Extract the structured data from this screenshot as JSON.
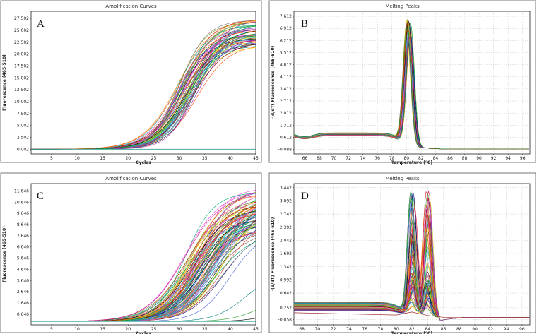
{
  "chart_data": [
    {
      "id": "A",
      "type": "line",
      "title": "Amplification Curves",
      "panel_letter": "A",
      "xlabel": "Cycles",
      "ylabel": "Fluorescence (465-510)",
      "xlim": [
        1,
        45
      ],
      "ylim": [
        -1000,
        29000
      ],
      "xticks": [
        5,
        10,
        15,
        20,
        25,
        30,
        35,
        40,
        45
      ],
      "yticks": [
        "0.002",
        "2.502",
        "5.002",
        "7.502",
        "10.002",
        "12.502",
        "15.002",
        "17.502",
        "20.002",
        "22.502",
        "25.002",
        "27.502"
      ],
      "ytick_values": [
        0.002,
        2502,
        5002,
        7502,
        10002,
        12502,
        15002,
        17502,
        20002,
        22502,
        25002,
        27502
      ],
      "grid": false,
      "curve_model": {
        "kind": "sigmoid",
        "count": 60,
        "midpoint_range": [
          29.5,
          33.5
        ],
        "plateau_range": [
          21500,
          27500
        ],
        "slope_range": [
          2.6,
          3.4
        ],
        "baseline": 0
      }
    },
    {
      "id": "B",
      "type": "line",
      "title": "Melting Peaks",
      "panel_letter": "B",
      "xlabel": "Temperature (°C)",
      "ylabel": "-(d/dT) Fluorescence (465-510)",
      "xlim": [
        64.5,
        97
      ],
      "ylim": [
        -0.35,
        7.9
      ],
      "xticks": [
        66,
        68,
        70,
        72,
        74,
        76,
        78,
        80,
        82,
        84,
        86,
        88,
        90,
        92,
        94,
        96
      ],
      "yticks": [
        "-0.088",
        "0.612",
        "1.312",
        "2.012",
        "2.712",
        "3.412",
        "4.112",
        "4.812",
        "5.512",
        "6.212",
        "6.912",
        "7.612"
      ],
      "ytick_values": [
        -0.088,
        0.612,
        1.312,
        2.012,
        2.712,
        3.412,
        4.112,
        4.812,
        5.512,
        6.212,
        6.912,
        7.612
      ],
      "grid": true,
      "curve_model": {
        "kind": "melt",
        "count": 60,
        "peak_x_range": [
          80.0,
          80.6
        ],
        "peak_y_range": [
          6.1,
          7.3
        ],
        "peak_width": 0.75,
        "baseline_level": 0.78
      }
    },
    {
      "id": "C",
      "type": "line",
      "title": "Amplification Curves",
      "panel_letter": "C",
      "xlabel": "Cycles",
      "ylabel": "Fluorescence (465-510)",
      "xlim": [
        1,
        45
      ],
      "ylim": [
        -300,
        12300
      ],
      "xticks": [
        5,
        10,
        15,
        20,
        25,
        30,
        35,
        40,
        45
      ],
      "yticks": [
        "0.646",
        "1.646",
        "2.646",
        "3.646",
        "4.646",
        "5.646",
        "6.646",
        "7.646",
        "8.646",
        "9.646",
        "10.646",
        "11.646"
      ],
      "ytick_values": [
        646,
        1646,
        2646,
        3646,
        4646,
        5646,
        6646,
        7646,
        8646,
        9646,
        10646,
        11646
      ],
      "grid": false,
      "curve_model": {
        "kind": "sigmoid",
        "count": 90,
        "midpoint_range": [
          31,
          39
        ],
        "plateau_range": [
          8000,
          12000
        ],
        "slope_range": [
          2.8,
          4.0
        ],
        "baseline": 0,
        "late_curves": [
          [
            40,
            4000
          ],
          [
            43,
            2200
          ],
          [
            46,
            1200
          ],
          [
            50,
            900
          ]
        ]
      }
    },
    {
      "id": "D",
      "type": "line",
      "title": "Melting Peaks",
      "panel_letter": "D",
      "xlabel": "Temperature (°C)",
      "ylabel": "-(d/dT) Fluorescence (465-510)",
      "xlim": [
        67,
        97
      ],
      "ylim": [
        -0.2,
        3.55
      ],
      "xticks": [
        68,
        70,
        72,
        74,
        76,
        78,
        80,
        82,
        84,
        86,
        88,
        90,
        92,
        94,
        96
      ],
      "yticks": [
        "-0.058",
        "0.252",
        "0.642",
        "0.992",
        "1.342",
        "1.692",
        "2.042",
        "2.392",
        "2.742",
        "3.092",
        "3.442"
      ],
      "ytick_values": [
        -0.058,
        0.252,
        0.642,
        0.992,
        1.342,
        1.692,
        2.042,
        2.392,
        2.742,
        3.092,
        3.442
      ],
      "grid": true,
      "curve_model": {
        "kind": "melt2",
        "count": 80,
        "peak1_x": 82.1,
        "peak2_x": 84.0,
        "peak_width": 0.65,
        "max_height": 3.35,
        "baseline_level": 0.3
      }
    }
  ],
  "colors": [
    "#e6194b",
    "#3cb44b",
    "#ffe119",
    "#4363d8",
    "#f58231",
    "#911eb4",
    "#46f0f0",
    "#f032e6",
    "#bcf60c",
    "#fabebe",
    "#008080",
    "#800000",
    "#808000",
    "#000075",
    "#808080",
    "#ff7f00",
    "#1f77b4",
    "#2ca02c",
    "#d62728",
    "#9467bd",
    "#8c564b",
    "#e377c2",
    "#17becf",
    "#bcbd22",
    "#000000",
    "#00a86b",
    "#c71585",
    "#6a5acd",
    "#ff4500",
    "#228b22"
  ]
}
